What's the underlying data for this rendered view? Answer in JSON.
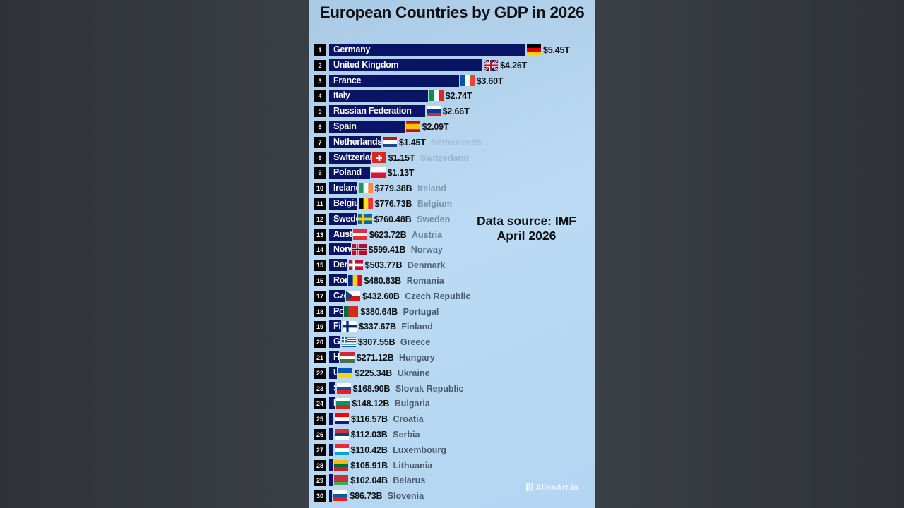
{
  "title": "European Countries by GDP in 2026",
  "source": "Data source: IMF April 2026",
  "watermark": "AlienArt.io",
  "chart_data": {
    "type": "bar",
    "orientation": "horizontal",
    "title": "European Countries by GDP in 2026",
    "unit": "USD",
    "bar_color": "#0a1464",
    "rows": [
      {
        "rank": "1",
        "country": "Germany",
        "value": 5450,
        "label": "$5.45T",
        "flag": {
          "type": "h",
          "colors": [
            "#000000",
            "#dd0000",
            "#ffce00"
          ]
        }
      },
      {
        "rank": "2",
        "country": "United Kingdom",
        "value": 4260,
        "label": "$4.26T",
        "flag": {
          "type": "uk",
          "colors": [
            "#012169",
            "#ffffff",
            "#c8102e"
          ]
        }
      },
      {
        "rank": "3",
        "country": "France",
        "value": 3600,
        "label": "$3.60T",
        "flag": {
          "type": "v",
          "colors": [
            "#0055a4",
            "#ffffff",
            "#ef4135"
          ]
        }
      },
      {
        "rank": "4",
        "country": "Italy",
        "value": 2740,
        "label": "$2.74T",
        "flag": {
          "type": "v",
          "colors": [
            "#009246",
            "#ffffff",
            "#ce2b37"
          ]
        }
      },
      {
        "rank": "5",
        "country": "Russian Federation",
        "value": 2660,
        "label": "$2.66T",
        "flag": {
          "type": "h",
          "colors": [
            "#ffffff",
            "#0039a6",
            "#d52b1e"
          ]
        }
      },
      {
        "rank": "6",
        "country": "Spain",
        "value": 2090,
        "label": "$2.09T",
        "flag": {
          "type": "h",
          "colors": [
            "#c60b1e",
            "#ffc400",
            "#ffc400",
            "#c60b1e"
          ]
        }
      },
      {
        "rank": "7",
        "country": "Netherlands",
        "value": 1450,
        "label": "$1.45T",
        "flag": {
          "type": "h",
          "colors": [
            "#ae1c28",
            "#ffffff",
            "#21468b"
          ]
        }
      },
      {
        "rank": "8",
        "country": "Switzerland",
        "value": 1150,
        "label": "$1.15T",
        "flag": {
          "type": "ch",
          "colors": [
            "#da291c",
            "#ffffff"
          ]
        }
      },
      {
        "rank": "9",
        "country": "Poland",
        "value": 1130,
        "label": "$1.13T",
        "flag": {
          "type": "h",
          "colors": [
            "#ffffff",
            "#dc143c"
          ]
        }
      },
      {
        "rank": "10",
        "country": "Ireland",
        "value": 779.38,
        "label": "$779.38B",
        "flag": {
          "type": "v",
          "colors": [
            "#169b62",
            "#ffffff",
            "#ff883e"
          ]
        }
      },
      {
        "rank": "11",
        "country": "Belgium",
        "value": 776.73,
        "label": "$776.73B",
        "flag": {
          "type": "v",
          "colors": [
            "#000000",
            "#fdda24",
            "#ef3340"
          ]
        }
      },
      {
        "rank": "12",
        "country": "Sweden",
        "value": 760.48,
        "label": "$760.48B",
        "flag": {
          "type": "nordic",
          "colors": [
            "#006aa7",
            "#fecc00"
          ]
        }
      },
      {
        "rank": "13",
        "country": "Austria",
        "value": 623.72,
        "label": "$623.72B",
        "flag": {
          "type": "h",
          "colors": [
            "#ed2939",
            "#ffffff",
            "#ed2939"
          ]
        }
      },
      {
        "rank": "14",
        "country": "Norway",
        "value": 599.41,
        "label": "$599.41B",
        "flag": {
          "type": "nordic",
          "colors": [
            "#ba0c2f",
            "#ffffff",
            "#00205b"
          ]
        }
      },
      {
        "rank": "15",
        "country": "Denmark",
        "value": 503.77,
        "label": "$503.77B",
        "flag": {
          "type": "nordic",
          "colors": [
            "#c8102e",
            "#ffffff"
          ]
        }
      },
      {
        "rank": "16",
        "country": "Romania",
        "value": 480.83,
        "label": "$480.83B",
        "flag": {
          "type": "v",
          "colors": [
            "#002b7f",
            "#fcd116",
            "#ce1126"
          ]
        }
      },
      {
        "rank": "17",
        "country": "Czech Republic",
        "value": 432.6,
        "label": "$432.60B",
        "flag": {
          "type": "cz",
          "colors": [
            "#ffffff",
            "#d7141a",
            "#11457e"
          ]
        }
      },
      {
        "rank": "18",
        "country": "Portugal",
        "value": 380.64,
        "label": "$380.64B",
        "flag": {
          "type": "v",
          "colors": [
            "#046a38",
            "#da291c",
            "#da291c"
          ]
        }
      },
      {
        "rank": "19",
        "country": "Finland",
        "value": 337.67,
        "label": "$337.67B",
        "flag": {
          "type": "nordic",
          "colors": [
            "#ffffff",
            "#002f6c"
          ]
        }
      },
      {
        "rank": "20",
        "country": "Greece",
        "value": 307.55,
        "label": "$307.55B",
        "flag": {
          "type": "gr",
          "colors": [
            "#0d5eaf",
            "#ffffff"
          ]
        }
      },
      {
        "rank": "21",
        "country": "Hungary",
        "value": 271.12,
        "label": "$271.12B",
        "flag": {
          "type": "h",
          "colors": [
            "#ce2939",
            "#ffffff",
            "#477050"
          ]
        }
      },
      {
        "rank": "22",
        "country": "Ukraine",
        "value": 225.34,
        "label": "$225.34B",
        "flag": {
          "type": "h",
          "colors": [
            "#0057b7",
            "#ffd700"
          ]
        }
      },
      {
        "rank": "23",
        "country": "Slovak Republic",
        "value": 168.9,
        "label": "$168.90B",
        "flag": {
          "type": "h",
          "colors": [
            "#ffffff",
            "#0b4ea2",
            "#ee1c25"
          ]
        }
      },
      {
        "rank": "24",
        "country": "Bulgaria",
        "value": 148.12,
        "label": "$148.12B",
        "flag": {
          "type": "h",
          "colors": [
            "#ffffff",
            "#00966e",
            "#d62612"
          ]
        }
      },
      {
        "rank": "25",
        "country": "Croatia",
        "value": 116.57,
        "label": "$116.57B",
        "flag": {
          "type": "h",
          "colors": [
            "#ff0000",
            "#ffffff",
            "#171796"
          ]
        }
      },
      {
        "rank": "26",
        "country": "Serbia",
        "value": 112.03,
        "label": "$112.03B",
        "flag": {
          "type": "h",
          "colors": [
            "#c6363c",
            "#0c4076",
            "#ffffff"
          ]
        }
      },
      {
        "rank": "27",
        "country": "Luxembourg",
        "value": 110.42,
        "label": "$110.42B",
        "flag": {
          "type": "h",
          "colors": [
            "#ed2939",
            "#ffffff",
            "#00a1de"
          ]
        }
      },
      {
        "rank": "28",
        "country": "Lithuania",
        "value": 105.91,
        "label": "$105.91B",
        "flag": {
          "type": "h",
          "colors": [
            "#fdb913",
            "#006a44",
            "#c1272d"
          ]
        }
      },
      {
        "rank": "29",
        "country": "Belarus",
        "value": 102.04,
        "label": "$102.04B",
        "flag": {
          "type": "h",
          "colors": [
            "#c8313e",
            "#c8313e",
            "#4aa657"
          ]
        }
      },
      {
        "rank": "30",
        "country": "Slovenia",
        "value": 86.73,
        "label": "$86.73B",
        "flag": {
          "type": "h",
          "colors": [
            "#ffffff",
            "#005da4",
            "#ed1c24"
          ]
        }
      }
    ]
  }
}
